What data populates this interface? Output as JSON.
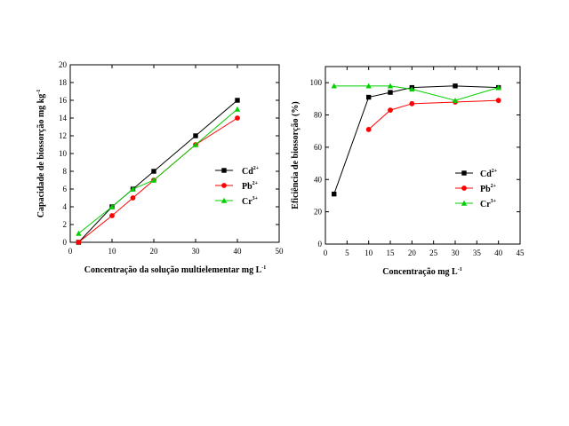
{
  "chart_data": [
    {
      "type": "line",
      "xlabel": "Concentração da solução multielementar mg L",
      "xlabel_sup": "-1",
      "ylabel": "Capacidade de biossorção mg kg",
      "ylabel_sup": "-1",
      "xlim": [
        0,
        50
      ],
      "ylim": [
        0,
        20
      ],
      "xticks": [
        0,
        10,
        20,
        30,
        40,
        50
      ],
      "yticks": [
        0,
        2,
        4,
        6,
        8,
        10,
        12,
        14,
        16,
        18,
        20
      ],
      "grid": false,
      "legend_position": "right",
      "series": [
        {
          "name": "Cd",
          "sup": "2+",
          "color": "#000000",
          "marker": "square",
          "x": [
            2,
            10,
            15,
            20,
            30,
            40
          ],
          "y": [
            0,
            4,
            6,
            8,
            12,
            16
          ]
        },
        {
          "name": "Pb",
          "sup": "2+",
          "color": "#ff0000",
          "marker": "circle",
          "x": [
            2,
            10,
            15,
            20,
            30,
            40
          ],
          "y": [
            0,
            3,
            5,
            7,
            11,
            14
          ]
        },
        {
          "name": "Cr",
          "sup": "3+",
          "color": "#00d000",
          "marker": "triangle",
          "x": [
            2,
            10,
            15,
            20,
            30,
            40
          ],
          "y": [
            1,
            4,
            6,
            7,
            11,
            15
          ]
        }
      ]
    },
    {
      "type": "line",
      "xlabel": "Concentração mg L",
      "xlabel_sup": "-1",
      "ylabel": "Eficiência de biossorção (%)",
      "ylabel_sup": "",
      "xlim": [
        0,
        45
      ],
      "ylim": [
        0,
        110
      ],
      "xticks": [
        0,
        5,
        10,
        15,
        20,
        25,
        30,
        35,
        40,
        45
      ],
      "yticks": [
        0,
        20,
        40,
        60,
        80,
        100
      ],
      "grid": false,
      "legend_position": "right",
      "series": [
        {
          "name": "Cd",
          "sup": "2+",
          "color": "#000000",
          "marker": "square",
          "x": [
            2,
            10,
            15,
            20,
            30,
            40
          ],
          "y": [
            31,
            91,
            94,
            97,
            98,
            97
          ]
        },
        {
          "name": "Pb",
          "sup": "2+",
          "color": "#ff0000",
          "marker": "circle",
          "x": [
            10,
            15,
            20,
            30,
            40
          ],
          "y": [
            71,
            83,
            87,
            88,
            89
          ]
        },
        {
          "name": "Cr",
          "sup": "3+",
          "color": "#00d000",
          "marker": "triangle",
          "x": [
            2,
            10,
            15,
            20,
            30,
            40
          ],
          "y": [
            98,
            98,
            98,
            96,
            89,
            97
          ]
        }
      ]
    }
  ]
}
